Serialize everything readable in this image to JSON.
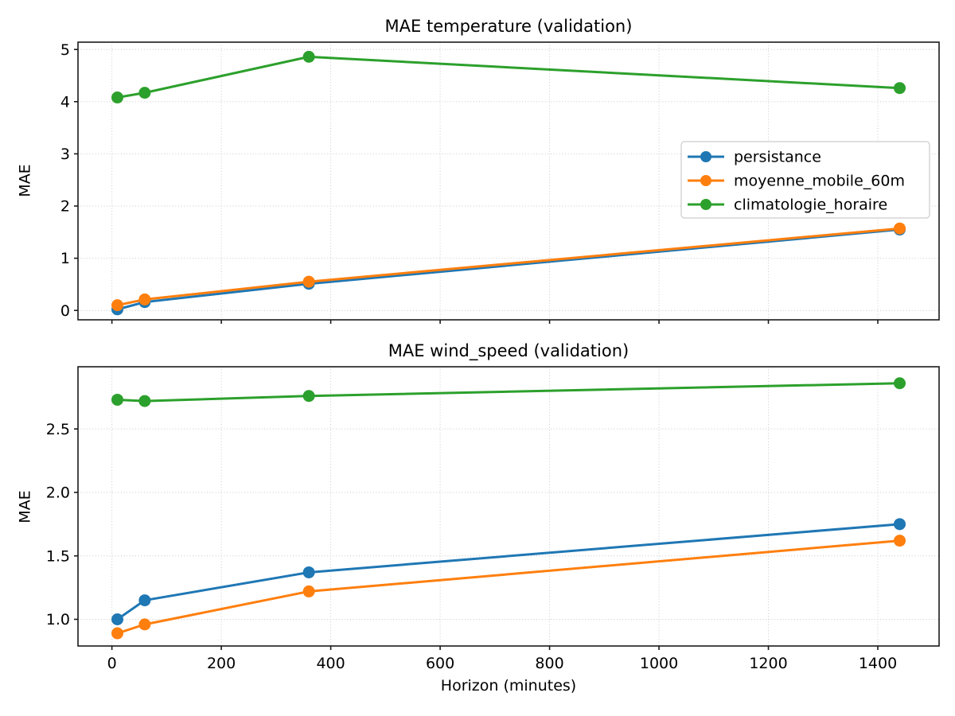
{
  "chart_data": [
    {
      "type": "line",
      "title": "MAE temperature (validation)",
      "ylabel": "MAE",
      "x": [
        10,
        60,
        360,
        1440
      ],
      "series": [
        {
          "name": "persistance",
          "color": "#1f77b4",
          "values": [
            0.02,
            0.16,
            0.51,
            1.55
          ]
        },
        {
          "name": "moyenne_mobile_60m",
          "color": "#ff7f0e",
          "values": [
            0.1,
            0.21,
            0.55,
            1.57
          ]
        },
        {
          "name": "climatologie_horaire",
          "color": "#2ca02c",
          "values": [
            4.08,
            4.17,
            4.86,
            4.26
          ]
        }
      ],
      "xlim": [
        -62,
        1512
      ],
      "ylim": [
        -0.18,
        5.14
      ],
      "xticks": [
        0,
        200,
        400,
        600,
        800,
        1000,
        1200,
        1400
      ],
      "xtick_labels": [
        "0",
        "200",
        "400",
        "600",
        "800",
        "1000",
        "1200",
        "1400"
      ],
      "show_xtick_labels": false,
      "yticks": [
        0,
        1,
        2,
        3,
        4,
        5
      ],
      "ytick_labels": [
        "0",
        "1",
        "2",
        "3",
        "4",
        "5"
      ],
      "grid": true,
      "legend": {
        "visible": true,
        "position": "center-right",
        "entries": [
          "persistance",
          "moyenne_mobile_60m",
          "climatologie_horaire"
        ]
      }
    },
    {
      "type": "line",
      "title": "MAE wind_speed (validation)",
      "ylabel": "MAE",
      "xlabel": "Horizon (minutes)",
      "x": [
        10,
        60,
        360,
        1440
      ],
      "series": [
        {
          "name": "persistance",
          "color": "#1f77b4",
          "values": [
            1.0,
            1.15,
            1.37,
            1.75
          ]
        },
        {
          "name": "moyenne_mobile_60m",
          "color": "#ff7f0e",
          "values": [
            0.89,
            0.96,
            1.22,
            1.62
          ]
        },
        {
          "name": "climatologie_horaire",
          "color": "#2ca02c",
          "values": [
            2.73,
            2.72,
            2.76,
            2.86
          ]
        }
      ],
      "xlim": [
        -62,
        1512
      ],
      "ylim": [
        0.79,
        2.99
      ],
      "xticks": [
        0,
        200,
        400,
        600,
        800,
        1000,
        1200,
        1400
      ],
      "xtick_labels": [
        "0",
        "200",
        "400",
        "600",
        "800",
        "1000",
        "1200",
        "1400"
      ],
      "show_xtick_labels": true,
      "yticks": [
        1.0,
        1.5,
        2.0,
        2.5
      ],
      "ytick_labels": [
        "1.0",
        "1.5",
        "2.0",
        "2.5"
      ],
      "grid": true,
      "legend": {
        "visible": false
      }
    }
  ]
}
